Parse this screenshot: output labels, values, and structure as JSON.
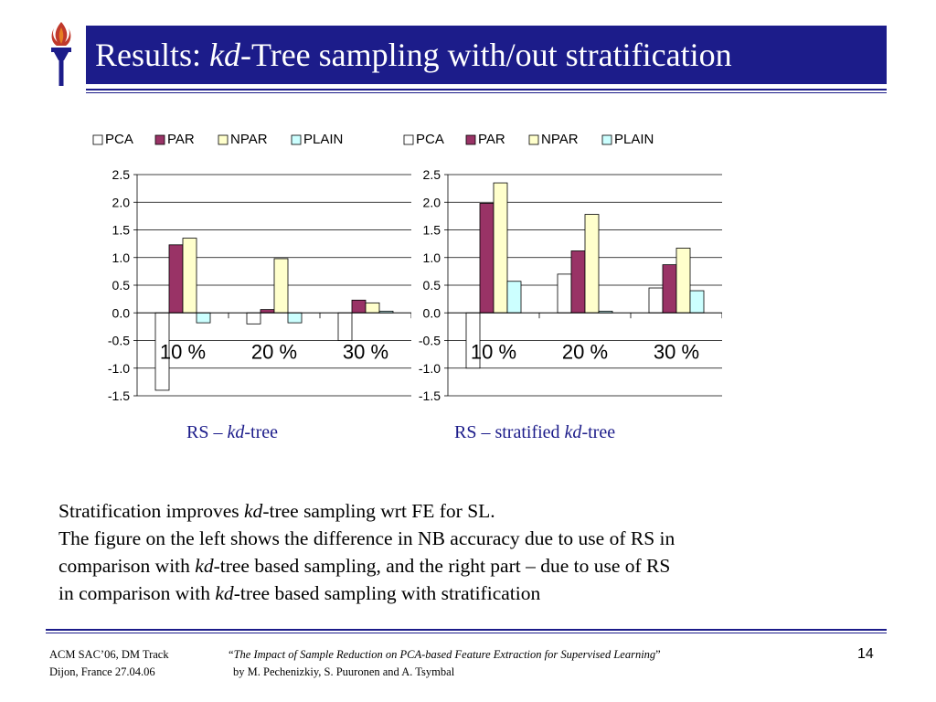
{
  "slide": {
    "title_prefix": "Results: ",
    "title_italic": "kd",
    "title_suffix": "-Tree sampling with/out stratification",
    "page_number": "14"
  },
  "colors": {
    "title_bg": "#1c1c8a",
    "PCA": "#ffffff",
    "PAR": "#993366",
    "NPAR": "#ffffcc",
    "PLAIN": "#ccffff"
  },
  "captions": {
    "left": {
      "prefix": "RS – ",
      "italic": "kd",
      "suffix": "-tree"
    },
    "right": {
      "prefix": "RS – stratified ",
      "italic": "kd",
      "suffix": "-tree"
    }
  },
  "body": {
    "line1_a": "Stratification improves ",
    "line1_italic": "kd",
    "line1_b": "-tree sampling wrt FE for SL.",
    "line2": "The figure on the left shows the difference in NB accuracy due to use of RS in",
    "line3_a": "comparison with ",
    "line3_italic": "kd",
    "line3_b": "-tree based sampling, and the right part – due to use of RS",
    "line4_a": "in comparison with ",
    "line4_italic": "kd",
    "line4_b": "-tree based sampling with stratification"
  },
  "footer": {
    "venue_line1": "ACM SAC’06, DM Track",
    "venue_line2": "Dijon, France 27.04.06",
    "quote_open": "“",
    "paper_title": "The Impact of Sample Reduction on PCA-based Feature Extraction for Supervised Learning",
    "quote_close": "”",
    "authors": "by M. Pechenizkiy, S. Puuronen and A. Tsymbal"
  },
  "chart_data": [
    {
      "type": "bar",
      "categories": [
        "10 %",
        "20 %",
        "30 %"
      ],
      "series": [
        {
          "name": "PCA",
          "values": [
            -1.4,
            -0.2,
            -0.5
          ]
        },
        {
          "name": "PAR",
          "values": [
            1.23,
            0.06,
            0.23
          ]
        },
        {
          "name": "NPAR",
          "values": [
            1.35,
            0.98,
            0.18
          ]
        },
        {
          "name": "PLAIN",
          "values": [
            -0.18,
            -0.18,
            0.03
          ]
        }
      ],
      "ylim": [
        -1.5,
        2.5
      ],
      "yticks": [
        "2.5",
        "2.0",
        "1.5",
        "1.0",
        "0.5",
        "0.0",
        "-0.5",
        "-1.0",
        "-1.5"
      ],
      "legend": "top",
      "grid": true
    },
    {
      "type": "bar",
      "categories": [
        "10 %",
        "20 %",
        "30 %"
      ],
      "series": [
        {
          "name": "PCA",
          "values": [
            -1.0,
            0.7,
            0.45
          ]
        },
        {
          "name": "PAR",
          "values": [
            1.98,
            1.12,
            0.87
          ]
        },
        {
          "name": "NPAR",
          "values": [
            2.35,
            1.78,
            1.17
          ]
        },
        {
          "name": "PLAIN",
          "values": [
            0.57,
            0.03,
            0.4
          ]
        }
      ],
      "ylim": [
        -1.5,
        2.5
      ],
      "yticks": [
        "2.5",
        "2.0",
        "1.5",
        "1.0",
        "0.5",
        "0.0",
        "-0.5",
        "-1.0",
        "-1.5"
      ],
      "legend": "top",
      "grid": true
    }
  ]
}
